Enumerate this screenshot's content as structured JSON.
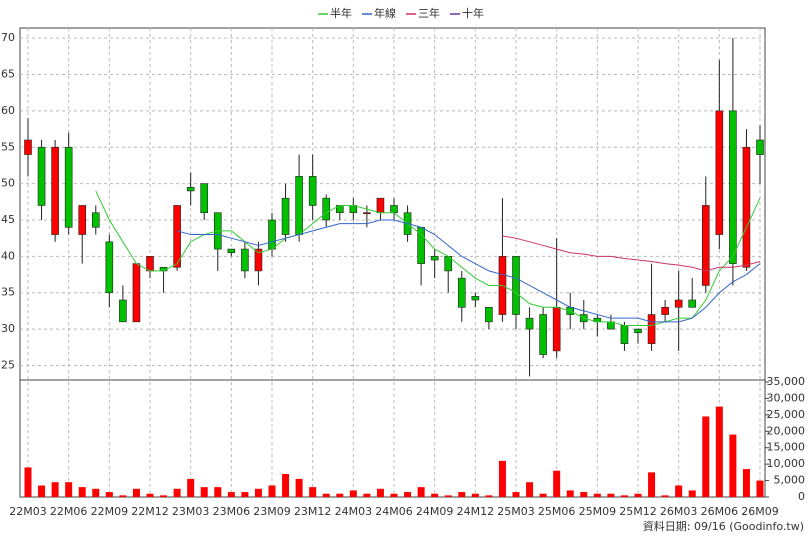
{
  "chart_data": [
    {
      "type": "candlestick",
      "categories": [
        "22M03",
        null,
        null,
        "22M06",
        null,
        null,
        "22M09",
        null,
        null,
        "22M12",
        null,
        null,
        "23M03",
        null,
        null,
        "23M06",
        null,
        null,
        "23M09",
        null,
        null,
        "23M12",
        null,
        null,
        "24M03",
        null,
        null,
        "24M06",
        null,
        null,
        "24M09",
        null,
        null,
        "24M12",
        null,
        null,
        "25M03",
        null,
        null,
        "25M06",
        null,
        null,
        "25M09",
        null,
        null,
        "25M12",
        null,
        null,
        "26M03",
        null,
        null,
        "26M06",
        null,
        null,
        "26M09"
      ],
      "open": [
        54,
        55,
        43,
        55,
        43,
        46,
        42,
        34,
        31,
        38,
        38.5,
        38.5,
        49.5,
        50,
        46,
        41,
        41,
        38,
        45,
        48,
        51,
        51,
        48,
        47,
        47,
        46,
        46,
        47,
        46,
        44,
        40,
        40,
        37,
        34.5,
        33,
        32,
        40,
        31.5,
        32,
        27,
        33,
        32,
        31.5,
        31,
        30.5,
        30,
        28,
        32,
        33,
        34,
        36,
        43,
        60,
        38.5,
        56
      ],
      "high": [
        59,
        56,
        56,
        57,
        47,
        47,
        43,
        36,
        39,
        40,
        38.5,
        47,
        51.5,
        50,
        46,
        41,
        42,
        42,
        46,
        50,
        54,
        54,
        48.5,
        47,
        48,
        47,
        48,
        48,
        47,
        44,
        41,
        40,
        38,
        35,
        33,
        48,
        40,
        33,
        33,
        42.5,
        35,
        34,
        32,
        32,
        31,
        30,
        39,
        34,
        38,
        37,
        51,
        67,
        70,
        57.5,
        58
      ],
      "low": [
        51,
        45,
        42,
        43,
        39,
        43,
        33,
        31,
        31,
        37,
        35,
        38,
        47,
        45,
        38,
        40,
        37,
        36,
        40,
        42,
        42,
        45,
        44,
        45,
        45,
        44,
        45,
        45,
        42,
        36,
        37,
        35,
        31,
        33,
        30,
        31,
        30,
        23.5,
        26,
        26,
        30,
        30,
        29,
        30,
        27,
        28,
        27,
        31,
        27,
        33,
        35,
        41,
        36,
        38,
        50
      ],
      "close": [
        56,
        47,
        55,
        44,
        47,
        44,
        35,
        31,
        39,
        40,
        38,
        47,
        49,
        46,
        41,
        40.5,
        38,
        41,
        41,
        43,
        43,
        47,
        45,
        46,
        46,
        46,
        48,
        46,
        43,
        39,
        39.5,
        38,
        33,
        34,
        31,
        40,
        32,
        30,
        26.5,
        33,
        32,
        31,
        31,
        30,
        28,
        29.5,
        32,
        33,
        34,
        33,
        47,
        60,
        39,
        55,
        54
      ],
      "up_color": "#ff0000",
      "down_color": "#00c000",
      "series": [
        {
          "name": "半年",
          "color": "#33cc33",
          "values": [
            null,
            null,
            null,
            null,
            null,
            49,
            45,
            42,
            39,
            38,
            38,
            39,
            42,
            43,
            43.5,
            43.5,
            42,
            40.5,
            41,
            42.5,
            43,
            44.5,
            46,
            47,
            47,
            46.5,
            46,
            46,
            44.5,
            43,
            41,
            40,
            38.5,
            37,
            36,
            36,
            35,
            33.5,
            33,
            33,
            32.5,
            31.5,
            31,
            31,
            30.5,
            30.5,
            30.5,
            31,
            31.5,
            31.5,
            34,
            38,
            40,
            44,
            48
          ]
        },
        {
          "name": "年線",
          "color": "#3366cc",
          "values": [
            null,
            null,
            null,
            null,
            null,
            null,
            null,
            null,
            null,
            null,
            null,
            43.5,
            43,
            43,
            43,
            42.5,
            42,
            41.5,
            42,
            42.5,
            43,
            43.5,
            44,
            44.5,
            44.5,
            44.5,
            45,
            45,
            44.5,
            44,
            43,
            41.5,
            40,
            39,
            38,
            37.5,
            37,
            36,
            35,
            34,
            33,
            32.5,
            32,
            31.5,
            31.5,
            31.5,
            31,
            31,
            31,
            31.5,
            33,
            35,
            36.5,
            37.5,
            39
          ]
        },
        {
          "name": "三年",
          "color": "#cc3366",
          "values": [
            null,
            null,
            null,
            null,
            null,
            null,
            null,
            null,
            null,
            null,
            null,
            null,
            null,
            null,
            null,
            null,
            null,
            null,
            null,
            null,
            null,
            null,
            null,
            null,
            null,
            null,
            null,
            null,
            null,
            null,
            null,
            null,
            null,
            null,
            null,
            42.8,
            42.5,
            42,
            41.5,
            41,
            40.5,
            40.3,
            40,
            40,
            39.7,
            39.5,
            39.3,
            39,
            38.8,
            38.5,
            38,
            38.5,
            38.5,
            38.8,
            39.3
          ]
        },
        {
          "name": "十年",
          "color": "#663399",
          "values": [
            null,
            null,
            null,
            null,
            null,
            null,
            null,
            null,
            null,
            null,
            null,
            null,
            null,
            null,
            null,
            null,
            null,
            null,
            null,
            null,
            null,
            null,
            null,
            null,
            null,
            null,
            null,
            null,
            null,
            null,
            null,
            null,
            null,
            null,
            null,
            null,
            null,
            null,
            null,
            null,
            null,
            null,
            null,
            null,
            null,
            null,
            null,
            null,
            null,
            null,
            null,
            null,
            null,
            null,
            null
          ]
        }
      ],
      "ylim": [
        23,
        71.4
      ],
      "yticks": [
        25,
        30,
        35,
        40,
        45,
        50,
        55,
        60,
        65,
        70
      ],
      "grid": true
    },
    {
      "type": "bar",
      "color": "#ff0000",
      "values": [
        9000,
        3500,
        4500,
        4500,
        3000,
        2500,
        1500,
        500,
        2500,
        1000,
        500,
        2500,
        5500,
        3000,
        3000,
        1500,
        1500,
        2500,
        3500,
        7000,
        5500,
        3000,
        1000,
        1000,
        2000,
        1000,
        2500,
        1000,
        1500,
        3000,
        1000,
        500,
        1500,
        1000,
        500,
        11000,
        1500,
        4500,
        1000,
        8000,
        2000,
        1500,
        1000,
        1000,
        500,
        1000,
        7500,
        500,
        3500,
        2000,
        24500,
        27500,
        19000,
        8500,
        5000
      ],
      "ylim": [
        0,
        35600
      ],
      "yticks": [
        0,
        {
          "value": 5000,
          "label": "5,000"
        },
        {
          "value": 10000,
          "label": "10,000"
        },
        {
          "value": 15000,
          "label": "15,000"
        },
        {
          "value": 20000,
          "label": "20,000"
        },
        {
          "value": 25000,
          "label": "25,000"
        },
        {
          "value": 30000,
          "label": "30,000"
        },
        {
          "value": 35000,
          "label": "35,000"
        }
      ],
      "footer": "資料日期: 09/16 (Goodinfo.tw)"
    }
  ]
}
